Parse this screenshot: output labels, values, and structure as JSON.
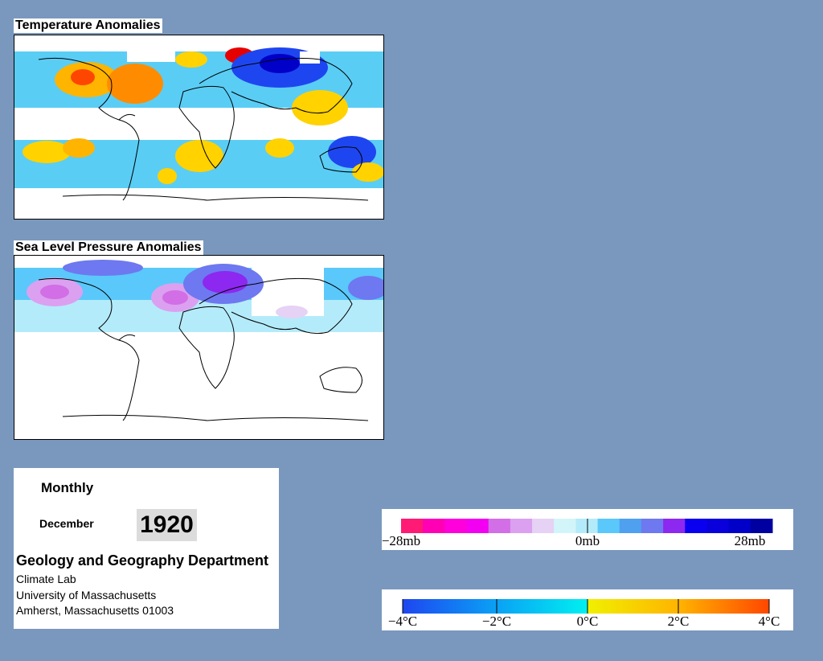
{
  "temperature": {
    "title": "Temperature Anomalies"
  },
  "pressure": {
    "title": "Sea Level Pressure Anomalies"
  },
  "info": {
    "frequency": "Monthly",
    "month": "December",
    "year": "1920",
    "department": "Geology and Geography Department",
    "lines": [
      "Climate Lab",
      "University of Massachusetts",
      "Amherst, Massachusetts 01003"
    ]
  },
  "pressure_legend": {
    "labels": [
      "−28mb",
      "0mb",
      "28mb"
    ],
    "colors": [
      "#ff1a75",
      "#ff00b4",
      "#ff00dc",
      "#f300f3",
      "#d26ee6",
      "#dca0f0",
      "#e6d2f5",
      "#d2f5fa",
      "#b4ebfa",
      "#5ac8fa",
      "#50a0f0",
      "#6e78f0",
      "#8c28f0",
      "#0a00f0",
      "#0a00dc",
      "#0000c8",
      "#0000a0"
    ]
  },
  "temperature_legend": {
    "labels": [
      "−4°C",
      "−2°C",
      "0°C",
      "2°C",
      "4°C"
    ],
    "colors_cold": [
      "#1e46f0",
      "#0aa0f5",
      "#00f0f0"
    ],
    "colors_warm": [
      "#f0f000",
      "#ffb400",
      "#ff4600"
    ]
  }
}
